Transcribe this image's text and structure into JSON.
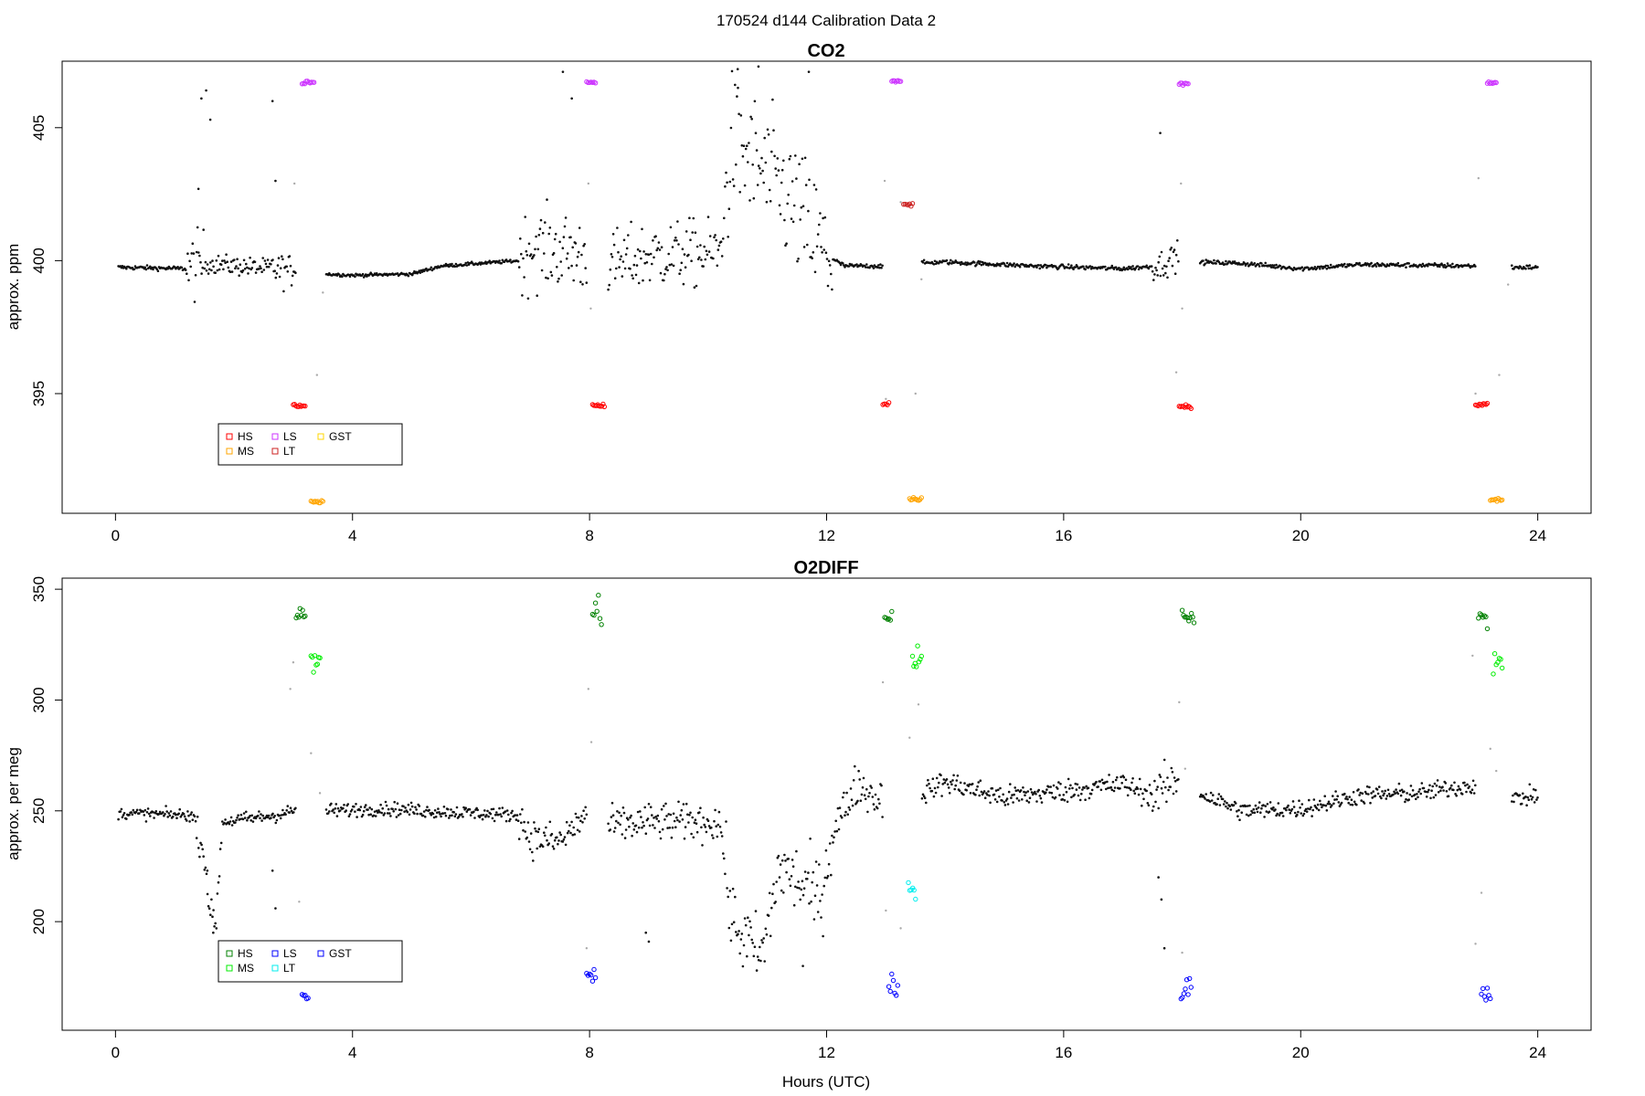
{
  "figure": {
    "title": "170524   d144   Calibration Data 2"
  },
  "chart_data": [
    {
      "type": "scatter",
      "title": "CO2",
      "xlabel": "",
      "ylabel": "approx. ppm",
      "xlim": [
        -0.9,
        24.9
      ],
      "ylim": [
        390.5,
        407.5
      ],
      "x_ticks": [
        0,
        4,
        8,
        12,
        16,
        20,
        24
      ],
      "y_ticks": [
        395,
        400,
        405
      ],
      "legend": {
        "position": "bottom-left",
        "entries": [
          {
            "name": "HS",
            "color": "#ff0000"
          },
          {
            "name": "MS",
            "color": "#ffa500"
          },
          {
            "name": "LS",
            "color": "#cc33ff"
          },
          {
            "name": "LT",
            "color": "#cc2222"
          },
          {
            "name": "GST",
            "color": "#ffd700"
          }
        ]
      },
      "baseline": [
        [
          0.05,
          399.75
        ],
        [
          1.2,
          399.7
        ],
        [
          1.5,
          399.9
        ],
        [
          2.6,
          399.7
        ],
        [
          3.0,
          399.6
        ],
        [
          3.5,
          399.5
        ],
        [
          4.0,
          399.45
        ],
        [
          5.0,
          399.5
        ],
        [
          5.5,
          399.8
        ],
        [
          6.8,
          400.0
        ],
        [
          7.0,
          400.5
        ],
        [
          8.0,
          400.2
        ],
        [
          8.3,
          399.8
        ],
        [
          9.0,
          400.2
        ],
        [
          10.2,
          400.3
        ],
        [
          10.4,
          404.5
        ],
        [
          11.3,
          402.5
        ],
        [
          12.0,
          400.2
        ],
        [
          12.3,
          399.8
        ],
        [
          13.0,
          399.8
        ],
        [
          13.5,
          399.9
        ],
        [
          14.0,
          399.95
        ],
        [
          15.5,
          399.8
        ],
        [
          17.0,
          399.7
        ],
        [
          17.6,
          399.8
        ],
        [
          18.0,
          400.3
        ],
        [
          18.2,
          399.95
        ],
        [
          19.0,
          399.9
        ],
        [
          20.0,
          399.7
        ],
        [
          21.0,
          399.85
        ],
        [
          23.0,
          399.8
        ],
        [
          23.5,
          399.75
        ],
        [
          24.0,
          399.75
        ]
      ],
      "noise": [
        [
          0.0,
          1.2,
          0.08
        ],
        [
          1.2,
          1.5,
          1.2
        ],
        [
          1.5,
          2.6,
          0.35
        ],
        [
          2.6,
          3.0,
          0.6
        ],
        [
          3.0,
          6.8,
          0.06
        ],
        [
          6.8,
          8.1,
          1.4
        ],
        [
          8.1,
          10.3,
          1.2
        ],
        [
          10.3,
          12.1,
          2.4
        ],
        [
          12.1,
          17.5,
          0.08
        ],
        [
          17.5,
          18.2,
          0.5
        ],
        [
          18.2,
          24.0,
          0.08
        ]
      ],
      "gaps": [
        [
          3.05,
          3.55
        ],
        [
          7.95,
          8.3
        ],
        [
          12.95,
          13.6
        ],
        [
          17.95,
          18.3
        ],
        [
          22.95,
          23.55
        ]
      ],
      "outliers": [
        [
          1.45,
          406.1
        ],
        [
          1.53,
          406.4
        ],
        [
          1.6,
          405.3
        ],
        [
          1.4,
          402.7
        ],
        [
          2.65,
          406.0
        ],
        [
          2.7,
          403.0
        ],
        [
          7.55,
          407.1
        ],
        [
          7.7,
          406.1
        ],
        [
          10.5,
          407.2
        ],
        [
          10.85,
          407.3
        ],
        [
          11.7,
          407.1
        ],
        [
          17.63,
          404.8
        ]
      ],
      "calibrations": [
        {
          "label": "HS",
          "color": "#ff0000",
          "runs": [
            [
              3.0,
              3.2,
              394.55
            ],
            [
              8.05,
              8.25,
              394.55
            ],
            [
              12.95,
              13.05,
              394.6
            ],
            [
              17.95,
              18.15,
              394.5
            ],
            [
              22.95,
              23.15,
              394.6
            ]
          ]
        },
        {
          "label": "LS",
          "color": "#cc33ff",
          "runs": [
            [
              3.15,
              3.35,
              406.7
            ],
            [
              7.95,
              8.1,
              406.7
            ],
            [
              13.1,
              13.25,
              406.75
            ],
            [
              17.95,
              18.1,
              406.65
            ],
            [
              23.15,
              23.3,
              406.7
            ]
          ]
        },
        {
          "label": "MS",
          "color": "#ffa500",
          "runs": [
            [
              3.3,
              3.5,
              390.95
            ],
            [
              13.4,
              13.6,
              391.05
            ],
            [
              23.2,
              23.4,
              391.0
            ]
          ]
        },
        {
          "label": "LT",
          "color": "#cc2222",
          "runs": [
            [
              13.3,
              13.45,
              402.1
            ]
          ]
        }
      ],
      "transitions": [
        [
          3.02,
          402.9
        ],
        [
          3.4,
          395.7
        ],
        [
          3.5,
          398.8
        ],
        [
          7.98,
          402.9
        ],
        [
          8.02,
          398.2
        ],
        [
          13.0,
          394.8
        ],
        [
          12.98,
          403.0
        ],
        [
          13.25,
          402.2
        ],
        [
          13.5,
          395.0
        ],
        [
          13.6,
          399.3
        ],
        [
          17.98,
          402.9
        ],
        [
          18.0,
          398.2
        ],
        [
          17.9,
          395.8
        ],
        [
          23.0,
          403.1
        ],
        [
          22.95,
          395.0
        ],
        [
          23.35,
          395.7
        ],
        [
          23.5,
          399.1
        ]
      ]
    },
    {
      "type": "scatter",
      "title": "O2DIFF",
      "xlabel": "Hours (UTC)",
      "ylabel": "approx. per meg",
      "xlim": [
        -0.9,
        24.9
      ],
      "ylim": [
        151.0,
        355.0
      ],
      "x_ticks": [
        0,
        4,
        8,
        12,
        16,
        20,
        24
      ],
      "y_ticks": [
        200,
        250,
        300,
        350
      ],
      "legend": {
        "position": "bottom-left",
        "entries": [
          {
            "name": "HS",
            "color": "#008000"
          },
          {
            "name": "MS",
            "color": "#00ee00"
          },
          {
            "name": "LS",
            "color": "#0000ff"
          },
          {
            "name": "LT",
            "color": "#00eeee"
          },
          {
            "name": "GST",
            "color": "#0000ff"
          }
        ]
      },
      "baseline": [
        [
          0.05,
          249
        ],
        [
          1.3,
          248
        ],
        [
          1.5,
          230
        ],
        [
          1.6,
          203
        ],
        [
          1.7,
          200
        ],
        [
          1.8,
          245
        ],
        [
          2.7,
          248
        ],
        [
          3.0,
          250
        ],
        [
          3.5,
          250
        ],
        [
          4.5,
          251
        ],
        [
          6.8,
          248
        ],
        [
          7.0,
          238
        ],
        [
          7.5,
          236
        ],
        [
          8.0,
          250
        ],
        [
          8.3,
          243
        ],
        [
          9.0,
          245
        ],
        [
          10.2,
          245
        ],
        [
          10.4,
          200
        ],
        [
          10.9,
          183
        ],
        [
          11.2,
          225
        ],
        [
          11.9,
          210
        ],
        [
          12.1,
          240
        ],
        [
          12.5,
          262
        ],
        [
          12.9,
          255
        ],
        [
          13.6,
          258
        ],
        [
          14.0,
          263
        ],
        [
          15.0,
          256
        ],
        [
          16.0,
          259
        ],
        [
          17.0,
          262
        ],
        [
          17.5,
          257
        ],
        [
          18.0,
          265
        ],
        [
          18.3,
          258
        ],
        [
          19.0,
          250
        ],
        [
          20.0,
          251
        ],
        [
          21.0,
          257
        ],
        [
          22.0,
          258
        ],
        [
          23.0,
          262
        ],
        [
          23.5,
          255
        ],
        [
          24.0,
          257
        ]
      ],
      "noise": [
        [
          0.0,
          1.3,
          2.5
        ],
        [
          1.3,
          1.8,
          6
        ],
        [
          1.8,
          6.8,
          3
        ],
        [
          6.8,
          8.1,
          8
        ],
        [
          8.1,
          10.3,
          8
        ],
        [
          10.3,
          12.1,
          16
        ],
        [
          12.1,
          13.0,
          9
        ],
        [
          13.0,
          17.5,
          5
        ],
        [
          17.5,
          18.3,
          9
        ],
        [
          18.3,
          24.0,
          4
        ]
      ],
      "gaps": [
        [
          3.05,
          3.55
        ],
        [
          7.95,
          8.3
        ],
        [
          12.95,
          13.6
        ],
        [
          17.95,
          18.3
        ],
        [
          22.95,
          23.55
        ]
      ],
      "outliers": [
        [
          1.55,
          223
        ],
        [
          1.65,
          195
        ],
        [
          2.65,
          223
        ],
        [
          2.7,
          206
        ],
        [
          8.95,
          195
        ],
        [
          9.0,
          191
        ],
        [
          11.6,
          180
        ],
        [
          17.6,
          220
        ],
        [
          17.65,
          210
        ],
        [
          17.7,
          188
        ]
      ],
      "calibrations": [
        {
          "label": "HS",
          "color": "#008000",
          "runs": [
            [
              3.05,
              3.2,
              338
            ],
            [
              8.05,
              8.2,
              340
            ],
            [
              12.98,
              13.1,
              338
            ],
            [
              18.0,
              18.2,
              337
            ],
            [
              23.0,
              23.15,
              336
            ]
          ]
        },
        {
          "label": "MS",
          "color": "#00ee00",
          "runs": [
            [
              3.3,
              3.45,
              318
            ],
            [
              13.45,
              13.6,
              318
            ],
            [
              23.25,
              23.4,
              316
            ]
          ]
        },
        {
          "label": "LS",
          "color": "#0000ff",
          "runs": [
            [
              3.15,
              3.25,
              168
            ],
            [
              7.95,
              8.1,
              176
            ],
            [
              13.05,
              13.2,
              170
            ],
            [
              17.98,
              18.15,
              170
            ],
            [
              23.05,
              23.2,
              168
            ]
          ]
        },
        {
          "label": "LT",
          "color": "#00eeee",
          "runs": [
            [
              13.38,
              13.5,
              217
            ]
          ]
        }
      ],
      "transitions": [
        [
          3.0,
          317
        ],
        [
          2.95,
          305
        ],
        [
          3.1,
          209
        ],
        [
          3.3,
          276
        ],
        [
          3.45,
          258
        ],
        [
          7.98,
          305
        ],
        [
          8.03,
          281
        ],
        [
          7.95,
          188
        ],
        [
          12.95,
          308
        ],
        [
          13.0,
          205
        ],
        [
          13.25,
          197
        ],
        [
          13.4,
          283
        ],
        [
          13.55,
          298
        ],
        [
          17.95,
          299
        ],
        [
          18.0,
          186
        ],
        [
          18.05,
          269
        ],
        [
          22.9,
          320
        ],
        [
          22.95,
          190
        ],
        [
          23.05,
          213
        ],
        [
          23.2,
          278
        ],
        [
          23.3,
          268
        ]
      ]
    }
  ]
}
